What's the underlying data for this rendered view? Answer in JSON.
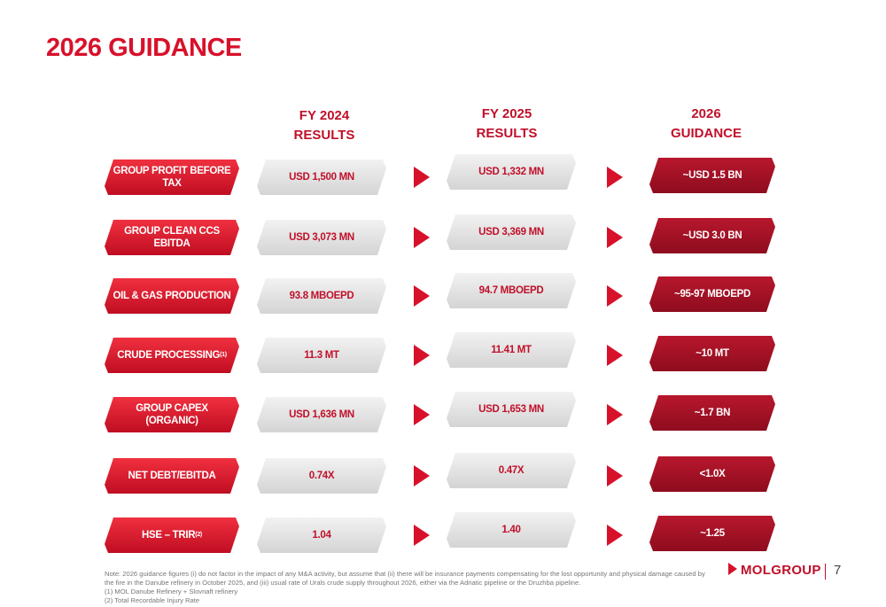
{
  "title": "2026 GUIDANCE",
  "columns": [
    {
      "line1": "FY 2024",
      "line2": "RESULTS"
    },
    {
      "line1": "FY 2025",
      "line2": "RESULTS"
    },
    {
      "line1": "2026",
      "line2": "GUIDANCE"
    }
  ],
  "rows": [
    {
      "label": "GROUP PROFIT BEFORE TAX",
      "fy2024": "USD 1,500 MN",
      "fy2025": "USD 1,332 MN",
      "guidance": "~USD 1.5 BN"
    },
    {
      "label": "GROUP CLEAN CCS EBITDA",
      "fy2024": "USD 3,073 MN",
      "fy2025": "USD 3,369 MN",
      "guidance": "~USD 3.0 BN"
    },
    {
      "label": "OIL & GAS PRODUCTION",
      "fy2024": "93.8 MBOEPD",
      "fy2025": "94.7 MBOEPD",
      "guidance": "~95-97 MBOEPD"
    },
    {
      "label": "CRUDE PROCESSING",
      "note": "(1)",
      "fy2024": "11.3 MT",
      "fy2025": "11.41 MT",
      "guidance": "~10 MT"
    },
    {
      "label": "GROUP CAPEX (ORGANIC)",
      "fy2024": "USD 1,636 MN",
      "fy2025": "USD 1,653 MN",
      "guidance": "~1.7 BN"
    },
    {
      "label": "NET DEBT/EBITDA",
      "fy2024": "0.74X",
      "fy2025": "0.47X",
      "guidance": "<1.0X"
    },
    {
      "label": "HSE – TRIR",
      "note": "(2)",
      "fy2024": "1.04",
      "fy2025": "1.40",
      "guidance": "~1.25"
    }
  ],
  "footnotes": [
    "Note: 2026 guidance figures (i) do not factor in the impact of any M&A activity, but assume that (ii) there will be insurance payments compensating for the lost opportunity and physical damage caused by the fire in the Danube refinery in October 2025, and (iii) usual rate of Urals crude supply throughout 2026, either via the Adriatic pipeline or the Druzhba pipeline.",
    "(1) MOL Danube Refinery + Slovnaft refinery",
    "(2) Total Recordable Injury Rate"
  ],
  "logo": "MOLGROUP",
  "page_number": "7"
}
